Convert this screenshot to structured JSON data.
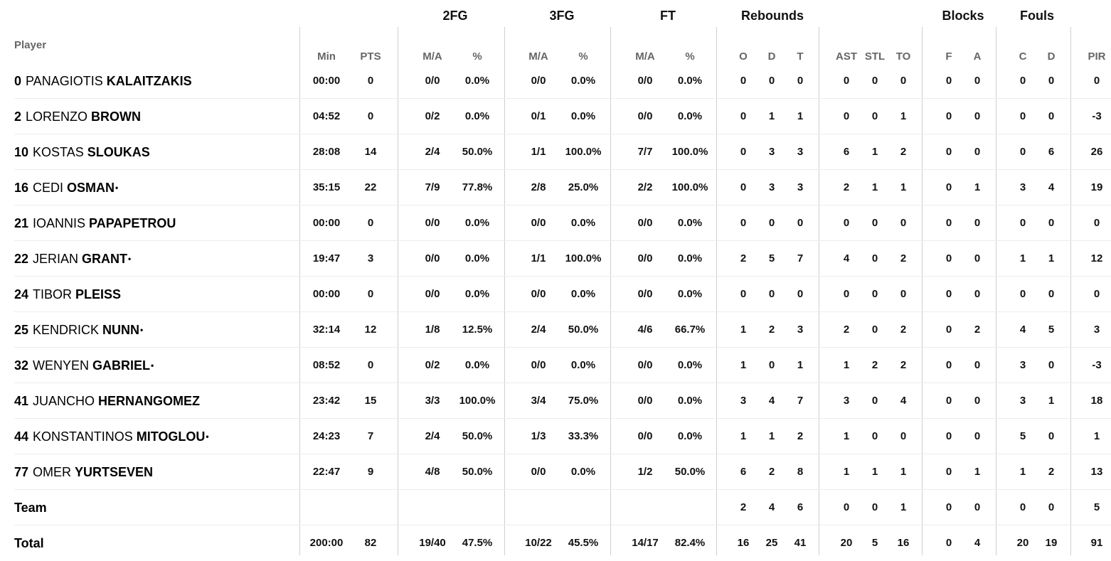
{
  "headers": {
    "player": "Player",
    "groups": [
      "2FG",
      "3FG",
      "FT",
      "Rebounds",
      "Blocks",
      "Fouls"
    ],
    "sub": [
      "Min",
      "PTS",
      "M/A",
      "%",
      "M/A",
      "%",
      "M/A",
      "%",
      "O",
      "D",
      "T",
      "AST",
      "STL",
      "TO",
      "F",
      "A",
      "C",
      "D",
      "PIR"
    ]
  },
  "players": [
    {
      "number": "0",
      "first": "PANAGIOTIS",
      "last": "KALAITZAKIS",
      "mark": "",
      "stats": [
        "00:00",
        "0",
        "0/0",
        "0.0%",
        "0/0",
        "0.0%",
        "0/0",
        "0.0%",
        "0",
        "0",
        "0",
        "0",
        "0",
        "0",
        "0",
        "0",
        "0",
        "0",
        "0"
      ]
    },
    {
      "number": "2",
      "first": "LORENZO",
      "last": "BROWN",
      "mark": "",
      "stats": [
        "04:52",
        "0",
        "0/2",
        "0.0%",
        "0/1",
        "0.0%",
        "0/0",
        "0.0%",
        "0",
        "1",
        "1",
        "0",
        "0",
        "1",
        "0",
        "0",
        "0",
        "0",
        "-3"
      ]
    },
    {
      "number": "10",
      "first": "KOSTAS",
      "last": "SLOUKAS",
      "mark": "",
      "stats": [
        "28:08",
        "14",
        "2/4",
        "50.0%",
        "1/1",
        "100.0%",
        "7/7",
        "100.0%",
        "0",
        "3",
        "3",
        "6",
        "1",
        "2",
        "0",
        "0",
        "0",
        "6",
        "26"
      ]
    },
    {
      "number": "16",
      "first": "CEDI",
      "last": "OSMAN",
      "mark": "•",
      "stats": [
        "35:15",
        "22",
        "7/9",
        "77.8%",
        "2/8",
        "25.0%",
        "2/2",
        "100.0%",
        "0",
        "3",
        "3",
        "2",
        "1",
        "1",
        "0",
        "1",
        "3",
        "4",
        "19"
      ]
    },
    {
      "number": "21",
      "first": "IOANNIS",
      "last": "PAPAPETROU",
      "mark": "",
      "stats": [
        "00:00",
        "0",
        "0/0",
        "0.0%",
        "0/0",
        "0.0%",
        "0/0",
        "0.0%",
        "0",
        "0",
        "0",
        "0",
        "0",
        "0",
        "0",
        "0",
        "0",
        "0",
        "0"
      ]
    },
    {
      "number": "22",
      "first": "JERIAN",
      "last": "GRANT",
      "mark": "•",
      "stats": [
        "19:47",
        "3",
        "0/0",
        "0.0%",
        "1/1",
        "100.0%",
        "0/0",
        "0.0%",
        "2",
        "5",
        "7",
        "4",
        "0",
        "2",
        "0",
        "0",
        "1",
        "1",
        "12"
      ]
    },
    {
      "number": "24",
      "first": "TIBOR",
      "last": "PLEISS",
      "mark": "",
      "stats": [
        "00:00",
        "0",
        "0/0",
        "0.0%",
        "0/0",
        "0.0%",
        "0/0",
        "0.0%",
        "0",
        "0",
        "0",
        "0",
        "0",
        "0",
        "0",
        "0",
        "0",
        "0",
        "0"
      ]
    },
    {
      "number": "25",
      "first": "KENDRICK",
      "last": "NUNN",
      "mark": "•",
      "stats": [
        "32:14",
        "12",
        "1/8",
        "12.5%",
        "2/4",
        "50.0%",
        "4/6",
        "66.7%",
        "1",
        "2",
        "3",
        "2",
        "0",
        "2",
        "0",
        "2",
        "4",
        "5",
        "3"
      ]
    },
    {
      "number": "32",
      "first": "WENYEN",
      "last": "GABRIEL",
      "mark": "•",
      "stats": [
        "08:52",
        "0",
        "0/2",
        "0.0%",
        "0/0",
        "0.0%",
        "0/0",
        "0.0%",
        "1",
        "0",
        "1",
        "1",
        "2",
        "2",
        "0",
        "0",
        "3",
        "0",
        "-3"
      ]
    },
    {
      "number": "41",
      "first": "JUANCHO",
      "last": "HERNANGOMEZ",
      "mark": "",
      "stats": [
        "23:42",
        "15",
        "3/3",
        "100.0%",
        "3/4",
        "75.0%",
        "0/0",
        "0.0%",
        "3",
        "4",
        "7",
        "3",
        "0",
        "4",
        "0",
        "0",
        "3",
        "1",
        "18"
      ]
    },
    {
      "number": "44",
      "first": "KONSTANTINOS",
      "last": "MITOGLOU",
      "mark": "•",
      "stats": [
        "24:23",
        "7",
        "2/4",
        "50.0%",
        "1/3",
        "33.3%",
        "0/0",
        "0.0%",
        "1",
        "1",
        "2",
        "1",
        "0",
        "0",
        "0",
        "0",
        "5",
        "0",
        "1"
      ]
    },
    {
      "number": "77",
      "first": "OMER",
      "last": "YURTSEVEN",
      "mark": "",
      "stats": [
        "22:47",
        "9",
        "4/8",
        "50.0%",
        "0/0",
        "0.0%",
        "1/2",
        "50.0%",
        "6",
        "2",
        "8",
        "1",
        "1",
        "1",
        "0",
        "1",
        "1",
        "2",
        "13"
      ]
    }
  ],
  "team": {
    "label": "Team",
    "stats": [
      "",
      "",
      "",
      "",
      "",
      "",
      "",
      "",
      "2",
      "4",
      "6",
      "0",
      "0",
      "1",
      "0",
      "0",
      "0",
      "0",
      "5"
    ]
  },
  "total": {
    "label": "Total",
    "stats": [
      "200:00",
      "82",
      "19/40",
      "47.5%",
      "10/22",
      "45.5%",
      "14/17",
      "82.4%",
      "16",
      "25",
      "41",
      "20",
      "5",
      "16",
      "0",
      "4",
      "20",
      "19",
      "91"
    ]
  }
}
